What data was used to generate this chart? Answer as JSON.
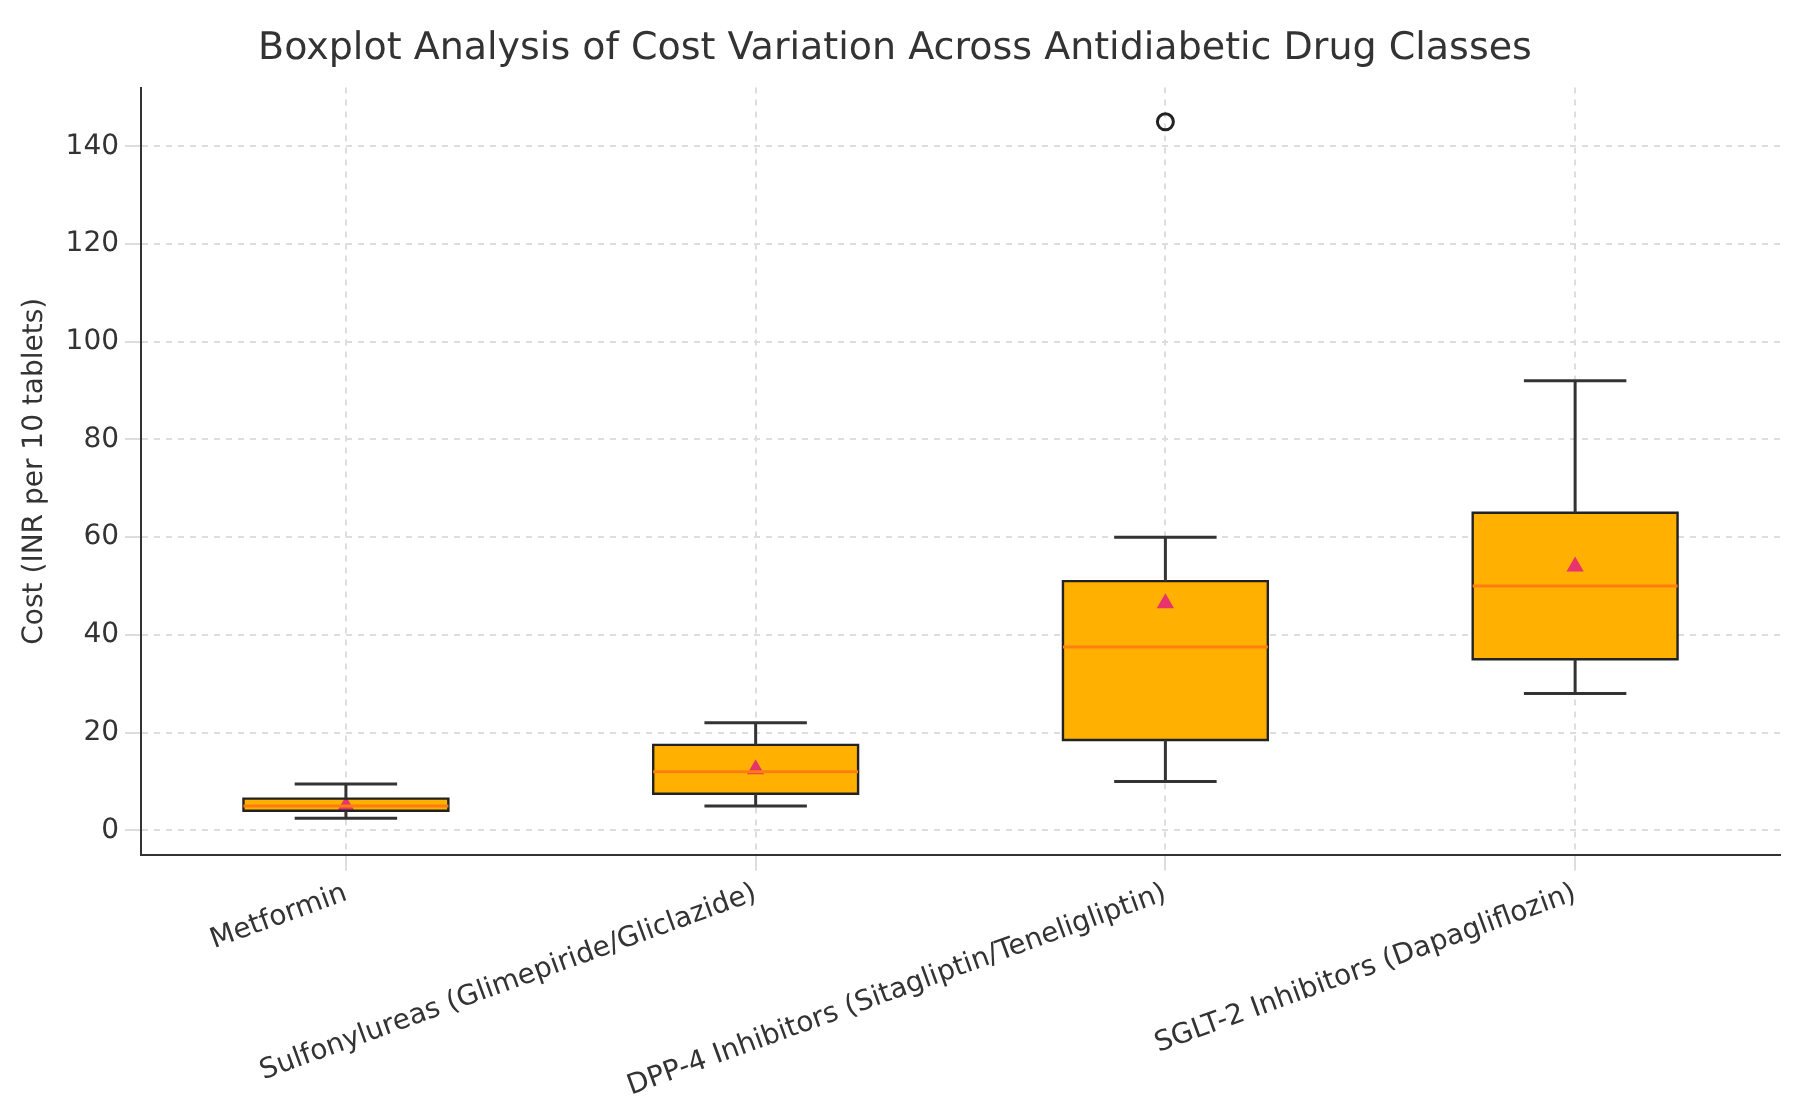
{
  "chart_data": {
    "type": "box",
    "title": "Boxplot Analysis of Cost Variation Across Antidiabetic Drug Classes",
    "ylabel": "Cost (INR per 10 tablets)",
    "categories": [
      "Metformin",
      "Sulfonylureas (Glimepiride/Gliclazide)",
      "DPP-4 Inhibitors (Sitagliptin/Teneligliptin)",
      "SGLT-2 Inhibitors (Dapagliflozin)"
    ],
    "color": "#ffb000",
    "boxes": [
      {
        "low": 2.5,
        "q1": 4,
        "median": 5,
        "q3": 6.5,
        "high": 9.5,
        "mean": 5
      },
      {
        "low": 5,
        "q1": 7.5,
        "median": 12,
        "q3": 17.5,
        "high": 22,
        "mean": 12.5
      },
      {
        "low": 10,
        "q1": 18.5,
        "median": 37.5,
        "q3": 51,
        "high": 60,
        "mean": 46.5,
        "outliers": [
          145
        ]
      },
      {
        "low": 28,
        "q1": 35,
        "median": 50,
        "q3": 65,
        "high": 92,
        "mean": 54
      }
    ],
    "ylim": [
      -5,
      152
    ],
    "yticks": [
      0,
      20,
      40,
      60,
      80,
      100,
      120,
      140
    ],
    "grid": true
  }
}
